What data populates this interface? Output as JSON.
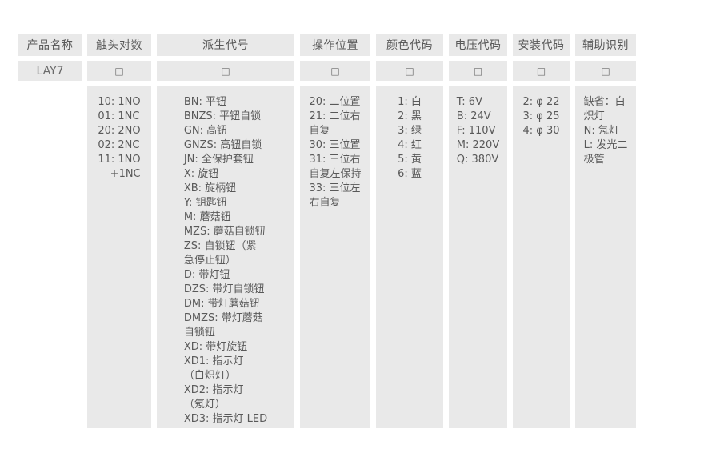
{
  "table": {
    "colors": {
      "cell_background": "#e9e9e9",
      "text": "#595959",
      "page_background": "#ffffff"
    },
    "columns": [
      {
        "id": "product",
        "header": "产品名称",
        "code": "LAY7",
        "lines": []
      },
      {
        "id": "contacts",
        "header": "触头对数",
        "code": "□",
        "lines": [
          "10: 1NO",
          "01: 1NC",
          "20: 2NO",
          "02: 2NC",
          "11: 1NO",
          "+1NC"
        ]
      },
      {
        "id": "derived",
        "header": "派生代号",
        "code": "□",
        "lines": [
          "BN: 平钮",
          "BNZS: 平钮自锁",
          "GN: 高钮",
          "GNZS: 高钮自锁",
          "JN: 全保护套钮",
          "X: 旋钮",
          "XB: 旋柄钮",
          "Y: 钥匙钮",
          "M: 蘑菇钮",
          "MZS: 蘑菇自锁钮",
          "ZS: 自锁钮（紧",
          "急停止钮）",
          "D: 带灯钮",
          "DZS: 带灯自锁钮",
          "DM: 带灯蘑菇钮",
          "DMZS: 带灯蘑菇",
          "自锁钮",
          "XD: 带灯旋钮",
          "XD1: 指示灯",
          "（白炽灯）",
          "XD2: 指示灯",
          "（氖灯）",
          "XD3: 指示灯 LED"
        ]
      },
      {
        "id": "operation",
        "header": "操作位置",
        "code": "□",
        "lines": [
          "20: 二位置",
          "21: 二位右",
          "自复",
          "30: 三位置",
          "31: 三位右",
          "自复左保持",
          "33: 三位左",
          "右自复"
        ]
      },
      {
        "id": "color",
        "header": "颜色代码",
        "code": "□",
        "lines": [
          "1: 白",
          "2: 黑",
          "3: 绿",
          "4: 红",
          "5: 黄",
          "6: 蓝"
        ]
      },
      {
        "id": "voltage",
        "header": "电压代码",
        "code": "□",
        "lines": [
          "T: 6V",
          "B: 24V",
          "F: 110V",
          "M: 220V",
          "Q: 380V"
        ]
      },
      {
        "id": "mounting",
        "header": "安装代码",
        "code": "□",
        "lines": [
          "2: φ 22",
          "3: φ 25",
          "4: φ 30"
        ]
      },
      {
        "id": "auxiliary",
        "header": "辅助识别",
        "code": "□",
        "lines": [
          "缺省：白",
          "炽灯",
          "N: 氖灯",
          "L: 发光二",
          "极管"
        ]
      }
    ]
  }
}
